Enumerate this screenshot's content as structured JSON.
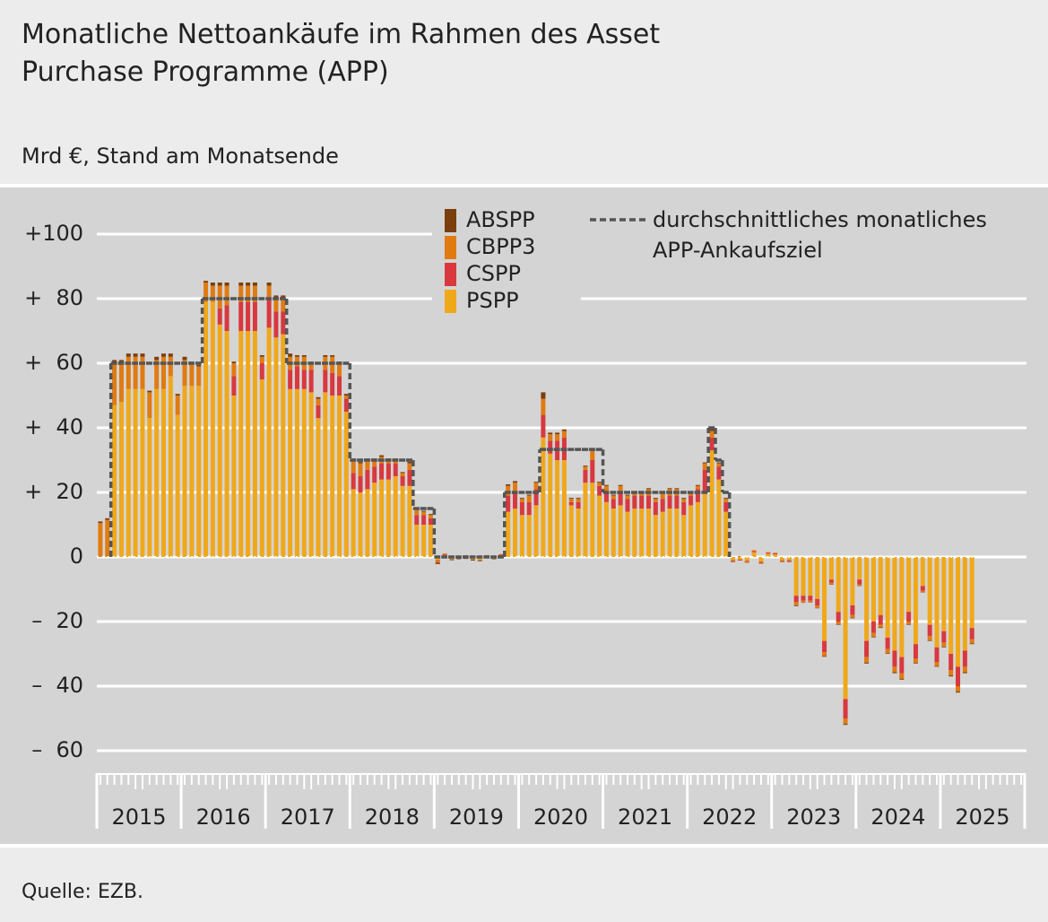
{
  "title": "Monatliche Nettoankäufe im Rahmen des Asset Purchase Programme (APP)",
  "source": "Quelle: EZB.",
  "chart_data": {
    "type": "stacked-bar",
    "subtitle": "Mrd €, Stand am Monatsende",
    "x_labels": [
      "2015",
      "2016",
      "2017",
      "2018",
      "2019",
      "2020",
      "2021",
      "2022",
      "2023",
      "2024",
      "2025"
    ],
    "ylim": [
      -60,
      100
    ],
    "yticks": [
      {
        "value": 100,
        "label": "+100"
      },
      {
        "value": 80,
        "label": "+  80"
      },
      {
        "value": 60,
        "label": "+  60"
      },
      {
        "value": 40,
        "label": "+  40"
      },
      {
        "value": 20,
        "label": "+  20"
      },
      0,
      {
        "value": -20,
        "label": "–  20"
      },
      {
        "value": -40,
        "label": "–  40"
      },
      {
        "value": -60,
        "label": "–  60"
      }
    ],
    "grid": true,
    "series": [
      {
        "name": "PSPP",
        "color": "#f0a81b",
        "values": [
          0,
          0,
          47,
          48,
          52,
          52,
          52,
          43,
          52,
          52,
          56,
          44,
          53,
          53,
          53,
          79,
          79,
          72,
          70,
          50,
          70,
          70,
          70,
          55,
          71,
          68,
          69,
          52,
          52,
          52,
          51,
          43,
          51,
          50,
          50,
          45,
          21,
          20,
          21,
          23,
          24,
          24,
          25,
          22,
          22,
          10,
          10,
          10,
          -1,
          0.5,
          -0.5,
          -0.4,
          0.3,
          -0.6,
          -1,
          0.2,
          -0.3,
          0.4,
          14,
          15,
          13,
          13,
          16,
          37,
          32,
          30,
          30,
          16,
          15,
          23,
          23,
          19,
          17,
          15,
          16,
          14,
          15,
          15,
          15,
          13,
          14,
          15,
          15,
          13,
          16,
          17,
          20,
          33,
          24,
          14,
          -1,
          -0.8,
          -1.2,
          1.5,
          -1.5,
          1,
          0.8,
          -1,
          -1,
          -12,
          -12,
          -12,
          -13,
          -26,
          -7,
          -17,
          -44,
          -15,
          -7,
          -26,
          -20,
          -18,
          -25,
          -29,
          -31,
          -17,
          -27,
          -9,
          -21,
          -28,
          -23,
          -30,
          -34,
          -29,
          -22
        ]
      },
      {
        "name": "CSPP",
        "color": "#d9383f",
        "values": [
          0,
          0,
          0,
          0,
          0,
          0,
          0,
          0,
          0,
          0,
          0,
          0,
          0,
          0,
          0,
          0,
          0,
          5,
          8,
          6,
          9,
          9,
          9,
          5,
          9,
          8,
          7,
          6,
          7,
          6,
          7,
          4,
          7,
          7,
          6,
          4,
          5,
          5,
          6,
          5,
          5,
          5,
          4,
          3,
          5,
          3,
          3,
          2,
          -0.3,
          0.3,
          0.2,
          0.2,
          0.2,
          0.2,
          0.1,
          0.1,
          0.2,
          0.3,
          5,
          5,
          4,
          4,
          5,
          7,
          4,
          6,
          7,
          1,
          2,
          4,
          7,
          3,
          3,
          3,
          4,
          4,
          4,
          4,
          4,
          4,
          4,
          4,
          4,
          4,
          3,
          4,
          7,
          4,
          4,
          3,
          -0.3,
          -0.2,
          -0.2,
          0.3,
          -0.3,
          0.3,
          0.3,
          -0.2,
          -0.3,
          -2,
          -1.5,
          -1.5,
          -2,
          -3.5,
          -1,
          -3,
          -6,
          -3,
          -1.5,
          -5,
          -3.5,
          -3,
          -3.5,
          -5,
          -5,
          -3,
          -4.5,
          -1.5,
          -3.5,
          -4.5,
          -3.5,
          -5,
          -6,
          -5,
          -3.5
        ]
      },
      {
        "name": "CBPP3",
        "color": "#e07b12",
        "values": [
          10.5,
          11.5,
          13,
          12,
          10,
          10,
          10,
          8,
          9,
          10,
          6,
          6,
          8,
          7,
          6,
          6,
          5,
          7,
          6,
          4,
          5,
          5,
          5,
          2,
          4,
          4,
          4,
          4,
          3,
          4,
          2,
          2,
          4,
          5,
          4,
          1,
          4,
          4,
          3,
          2,
          2,
          1,
          1,
          1,
          2,
          2,
          1,
          1,
          -0.5,
          0.3,
          -0.3,
          0.1,
          -0.4,
          -0.2,
          0.3,
          0.3,
          -0.2,
          0.2,
          3,
          3,
          1,
          2,
          2,
          5,
          2,
          2,
          2,
          1,
          1,
          1,
          3,
          1,
          2,
          1,
          2,
          1,
          1,
          1,
          2,
          1,
          2,
          2,
          2,
          1,
          1,
          1,
          2,
          2,
          1,
          1,
          -0.2,
          0.3,
          -0.3,
          0.3,
          -0.2,
          0.2,
          0.2,
          -0.3,
          -0.2,
          -1,
          -0.6,
          -0.5,
          -0.8,
          -1.2,
          -0.5,
          -0.8,
          -1.7,
          -0.8,
          -0.4,
          -1.7,
          -1.2,
          -0.8,
          -1.3,
          -1.7,
          -1.7,
          -0.8,
          -1.3,
          -0.4,
          -1.3,
          -1.3,
          -1.3,
          -1.7,
          -1.7,
          -1.7,
          -1.3
        ]
      },
      {
        "name": "ABSPP",
        "color": "#7b3f0e",
        "values": [
          0.5,
          0.5,
          1,
          1,
          1,
          1,
          1,
          0.5,
          1,
          1,
          1,
          0.5,
          1,
          0.5,
          0.5,
          0.5,
          1,
          1,
          1,
          0.5,
          1,
          1,
          1,
          0.5,
          1,
          1,
          1,
          1,
          0.5,
          0.5,
          0.5,
          0.5,
          0.5,
          0.5,
          0.5,
          0.5,
          0.5,
          0.5,
          0.5,
          0.5,
          0.5,
          0.5,
          0.5,
          0.3,
          0.5,
          0.3,
          0.3,
          0.3,
          -0.4,
          0,
          -0.2,
          -0.3,
          -0.2,
          -0.3,
          -0.3,
          0,
          -0.2,
          -0.1,
          0.5,
          0.5,
          0.3,
          0.3,
          0.3,
          2,
          0.5,
          0.5,
          0.5,
          0.3,
          0.3,
          0.3,
          0.5,
          0.3,
          0.3,
          0.3,
          0.3,
          0.3,
          0.3,
          0.3,
          0.3,
          0.3,
          0.3,
          0.3,
          0.3,
          0.3,
          0.3,
          0.3,
          0.3,
          1,
          0.3,
          0.3,
          -0.1,
          -0.1,
          -0.1,
          0,
          -0.1,
          0,
          0,
          -0.1,
          -0.1,
          -0.2,
          -0.1,
          -0.1,
          -0.1,
          -0.2,
          -0.1,
          -0.2,
          -0.3,
          -0.2,
          -0.1,
          -0.3,
          -0.2,
          -0.2,
          -0.2,
          -0.3,
          -0.3,
          -0.2,
          -0.2,
          -0.1,
          -0.2,
          -0.2,
          -0.2,
          -0.3,
          -0.3,
          -0.3,
          -0.2
        ]
      }
    ],
    "target": {
      "name": "durchschnittliches monatliches APP-Ankaufsziel",
      "color": "#555555",
      "values": [
        null,
        null,
        60,
        60,
        60,
        60,
        60,
        60,
        60,
        60,
        60,
        60,
        60,
        60,
        60,
        80,
        80,
        80,
        80,
        80,
        80,
        80,
        80,
        80,
        80,
        80,
        80,
        60,
        60,
        60,
        60,
        60,
        60,
        60,
        60,
        60,
        30,
        30,
        30,
        30,
        30,
        30,
        30,
        30,
        30,
        15,
        15,
        15,
        0,
        0,
        0,
        0,
        0,
        0,
        0,
        0,
        0,
        0,
        20,
        20,
        20,
        20,
        20,
        33.3,
        33.3,
        33.3,
        33.3,
        33.3,
        33.3,
        33.3,
        33.3,
        33.3,
        20,
        20,
        20,
        20,
        20,
        20,
        20,
        20,
        20,
        20,
        20,
        20,
        20,
        20,
        20,
        40,
        30,
        20,
        null,
        null,
        null,
        null,
        null,
        null,
        null,
        null,
        null,
        null,
        null,
        null,
        null,
        null,
        null,
        null,
        null,
        null,
        null,
        null,
        null,
        null,
        null,
        null,
        null,
        null,
        null,
        null,
        null,
        null,
        null,
        null,
        null,
        null,
        null
      ]
    }
  }
}
